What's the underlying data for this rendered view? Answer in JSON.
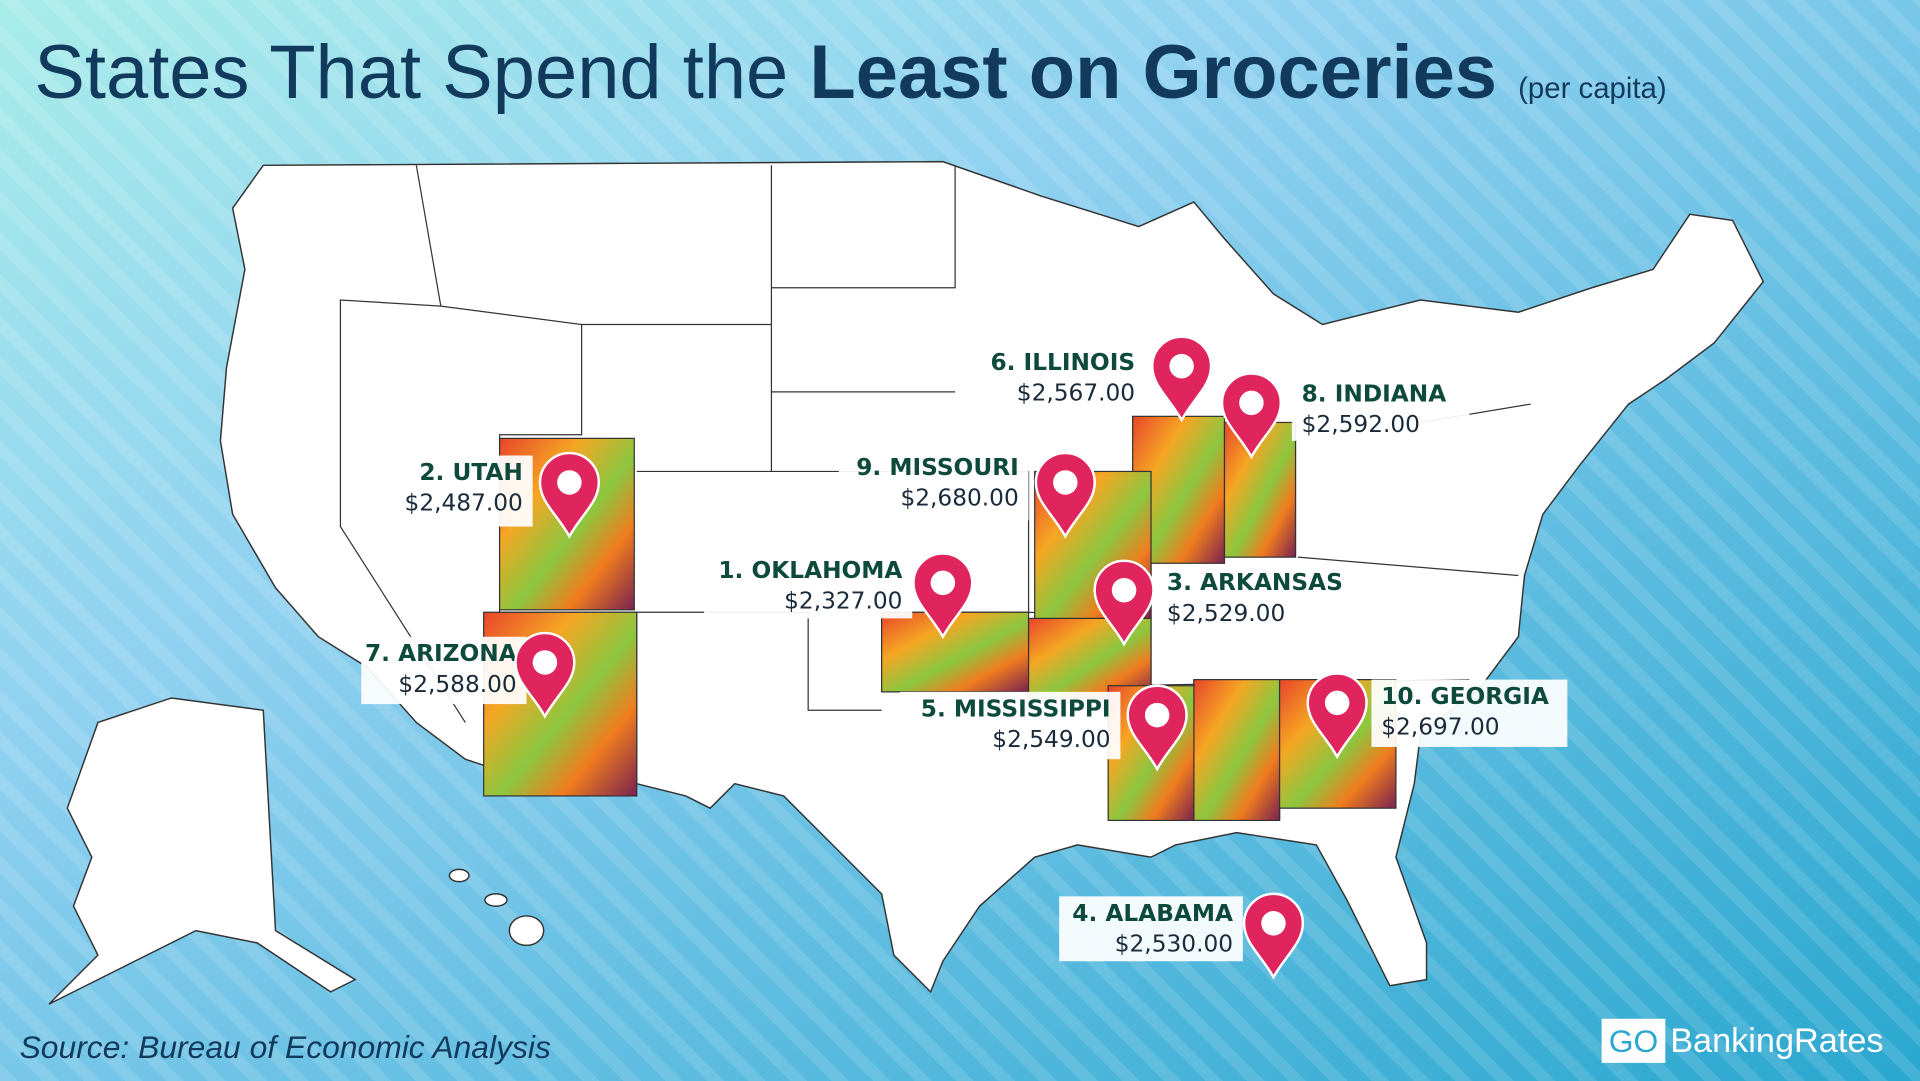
{
  "header": {
    "title_regular": "States That Spend the",
    "title_bold": "Least on Groceries",
    "subtitle": "(per capita)"
  },
  "states": [
    {
      "label": "1. OKLAHOMA",
      "amount": "$2,327.00"
    },
    {
      "label": "2. UTAH",
      "amount": "$2,487.00"
    },
    {
      "label": "3. ARKANSAS",
      "amount": "$2,529.00"
    },
    {
      "label": "4. ALABAMA",
      "amount": "$2,530.00"
    },
    {
      "label": "5. MISSISSIPPI",
      "amount": "$2,549.00"
    },
    {
      "label": "6. ILLINOIS",
      "amount": "$2,567.00"
    },
    {
      "label": "7. ARIZONA",
      "amount": "$2,588.00"
    },
    {
      "label": "8. INDIANA",
      "amount": "$2,592.00"
    },
    {
      "label": "9. MISSOURI",
      "amount": "$2,680.00"
    },
    {
      "label": "10. GEORGIA",
      "amount": "$2,697.00"
    }
  ],
  "footer": {
    "source": "Source: Bureau of Economic Analysis",
    "brand_go": "GO",
    "brand_name": "BankingRates"
  }
}
